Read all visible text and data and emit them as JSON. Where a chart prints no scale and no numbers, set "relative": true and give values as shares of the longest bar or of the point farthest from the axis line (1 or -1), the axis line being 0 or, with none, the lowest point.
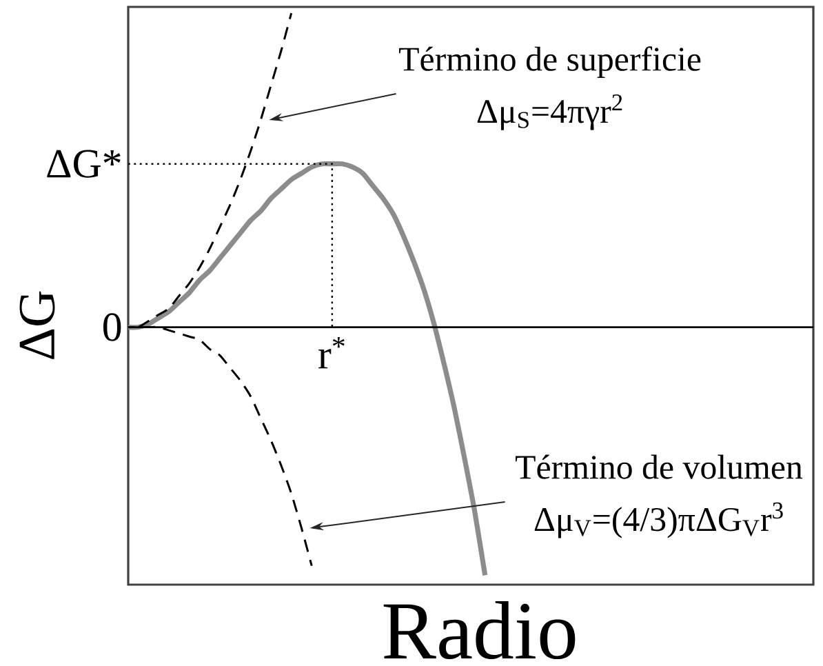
{
  "chart_data": {
    "type": "line",
    "relative": true,
    "xlabel": "Radio",
    "ylabel": "ΔG",
    "categories": [
      null,
      null,
      null,
      null,
      null,
      null,
      null,
      null,
      null,
      null,
      null,
      null,
      null,
      null,
      null,
      null,
      null,
      null,
      null,
      null,
      null,
      null,
      null,
      null,
      null,
      null,
      null,
      null,
      null,
      null,
      null,
      null,
      null,
      null,
      null,
      null
    ],
    "series": [
      {
        "color": "#8c8c8c",
        "line_style": "solid",
        "values": [
          0,
          0.0,
          0.01,
          0.03,
          0.05,
          0.08,
          0.11,
          0.15,
          0.18,
          0.22,
          0.26,
          0.3,
          0.34,
          0.37,
          0.41,
          0.44,
          0.47,
          0.49,
          0.51,
          0.52,
          0.52,
          0.52,
          0.51,
          0.49,
          0.45,
          0.41,
          0.36,
          0.29,
          0.21,
          0.12,
          0.01,
          -0.12,
          -0.26,
          -0.42,
          -0.59,
          -0.79
        ]
      },
      {
        "name": "Término de superficie Δμ$_{S}$=4πγr$^{2}$",
        "color": "#000000",
        "line_style": "dashed",
        "values": [
          0,
          0.0,
          0.02,
          0.04,
          0.06,
          0.1,
          0.14,
          0.19,
          0.25,
          0.32,
          0.39,
          0.47,
          0.56,
          0.66,
          0.77,
          0.88,
          1,
          null,
          null,
          null,
          null,
          null,
          null,
          null,
          null,
          null,
          null,
          null,
          null,
          null,
          null,
          null,
          null,
          null,
          null,
          null
        ]
      },
      {
        "name": "Término de volumen Δμ$_{V}$=(4/3)πΔG$_{V}$r$^{3}$",
        "color": "#000000",
        "line_style": "dashed",
        "values": [
          0,
          0.0,
          0,
          0,
          -0.01,
          -0.02,
          -0.03,
          -0.04,
          -0.07,
          -0.09,
          -0.13,
          -0.17,
          -0.22,
          -0.29,
          -0.36,
          -0.44,
          -0.53,
          -0.64,
          -0.76,
          null,
          null,
          null,
          null,
          null,
          null,
          null,
          null,
          null,
          null,
          null,
          null,
          null,
          null,
          null,
          null,
          null
        ]
      }
    ],
    "ref_lines": [
      {
        "axis": "y",
        "value": 0,
        "label": "0",
        "color": "#000000",
        "line_style": "solid"
      },
      {
        "axis": "y",
        "value": 0.52,
        "label": "ΔG*",
        "color": "#000000",
        "line_style": "dotted"
      }
    ],
    "annotations": [
      "r$^{*}$"
    ]
  }
}
